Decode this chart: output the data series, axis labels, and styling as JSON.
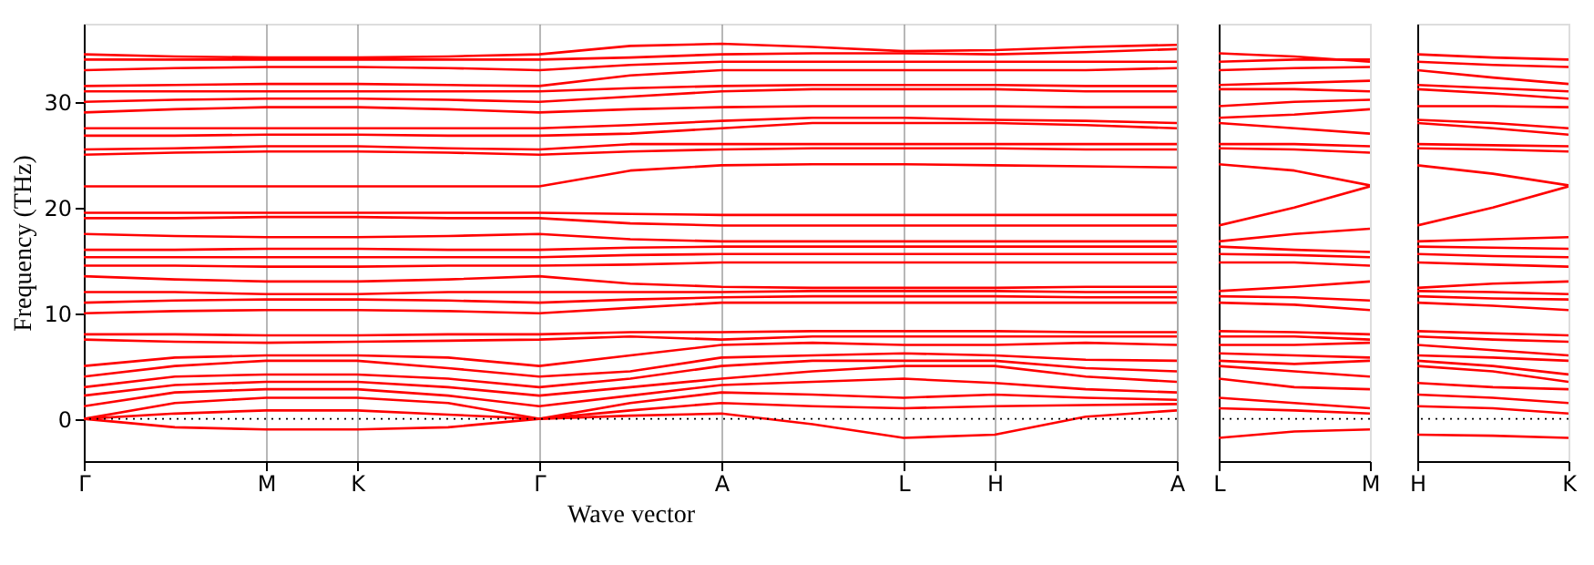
{
  "chart_data": [
    {
      "type": "line",
      "ylabel": "Frequency (THz)",
      "xlabel": "Wave vector",
      "categories": [
        "Γ",
        null,
        "M",
        "K",
        null,
        "Γ",
        null,
        "A",
        null,
        "L",
        "H",
        null,
        "A"
      ],
      "ylim": [
        -4,
        37.4
      ],
      "yticks": [
        0,
        10,
        20,
        30
      ],
      "grid": "x",
      "ref_lines": [
        {
          "axis": "y",
          "value": 0,
          "line_style": "dotted",
          "color": "#000000"
        }
      ],
      "line_style": "solid",
      "series": [
        {
          "color": "#ff0000",
          "values": [
            0,
            -0.8,
            -1.0,
            -1.0,
            -0.8,
            0,
            0.3,
            0.5,
            -0.5,
            -1.8,
            -1.5,
            0.2,
            0.8
          ]
        },
        {
          "color": "#ff0000",
          "values": [
            0,
            0.5,
            0.8,
            0.8,
            0.4,
            0,
            0.8,
            1.5,
            1.2,
            1.0,
            1.2,
            1.3,
            1.4
          ]
        },
        {
          "color": "#ff0000",
          "values": [
            0,
            1.5,
            2.0,
            2.0,
            1.5,
            0,
            1.5,
            2.5,
            2.3,
            2.0,
            2.3,
            2.0,
            1.8
          ]
        },
        {
          "color": "#ff0000",
          "values": [
            1.2,
            2.5,
            2.8,
            2.8,
            2.2,
            1.2,
            2.2,
            3.2,
            3.5,
            3.8,
            3.4,
            2.8,
            2.5
          ]
        },
        {
          "color": "#ff0000",
          "values": [
            2.2,
            3.2,
            3.5,
            3.5,
            3.0,
            2.2,
            3.0,
            3.8,
            4.5,
            5.0,
            5.0,
            4.0,
            3.5
          ]
        },
        {
          "color": "#ff0000",
          "values": [
            3.0,
            4.0,
            4.2,
            4.2,
            3.8,
            3.0,
            3.8,
            5.0,
            5.5,
            5.5,
            5.5,
            4.8,
            4.5
          ]
        },
        {
          "color": "#ff0000",
          "values": [
            4.0,
            5.0,
            5.5,
            5.5,
            4.8,
            4.0,
            4.5,
            5.8,
            6.0,
            6.2,
            6.0,
            5.6,
            5.5
          ]
        },
        {
          "color": "#ff0000",
          "values": [
            5.0,
            5.8,
            6.0,
            6.0,
            5.8,
            5.0,
            6.0,
            7.0,
            7.2,
            7.0,
            7.0,
            7.2,
            7.0
          ]
        },
        {
          "color": "#ff0000",
          "values": [
            7.5,
            7.3,
            7.2,
            7.3,
            7.4,
            7.5,
            7.8,
            7.5,
            7.8,
            7.8,
            7.8,
            7.8,
            7.8
          ]
        },
        {
          "color": "#ff0000",
          "values": [
            8.0,
            8.0,
            7.9,
            7.9,
            8.0,
            8.0,
            8.2,
            8.2,
            8.3,
            8.3,
            8.3,
            8.2,
            8.2
          ]
        },
        {
          "color": "#ff0000",
          "values": [
            10.0,
            10.2,
            10.3,
            10.3,
            10.2,
            10.0,
            10.5,
            11.0,
            11.0,
            11.0,
            11.0,
            11.0,
            11.0
          ]
        },
        {
          "color": "#ff0000",
          "values": [
            11.0,
            11.2,
            11.3,
            11.3,
            11.2,
            11.0,
            11.3,
            11.5,
            11.6,
            11.6,
            11.6,
            11.5,
            11.5
          ]
        },
        {
          "color": "#ff0000",
          "values": [
            12.0,
            12.0,
            11.8,
            11.8,
            12.0,
            12.0,
            12.0,
            12.0,
            12.1,
            12.1,
            12.1,
            12.0,
            12.0
          ]
        },
        {
          "color": "#ff0000",
          "values": [
            13.5,
            13.2,
            13.0,
            13.0,
            13.2,
            13.5,
            12.8,
            12.5,
            12.4,
            12.4,
            12.4,
            12.5,
            12.5
          ]
        },
        {
          "color": "#ff0000",
          "values": [
            14.5,
            14.5,
            14.4,
            14.4,
            14.5,
            14.5,
            14.6,
            14.8,
            14.8,
            14.8,
            14.8,
            14.8,
            14.8
          ]
        },
        {
          "color": "#ff0000",
          "values": [
            15.3,
            15.3,
            15.3,
            15.3,
            15.3,
            15.3,
            15.5,
            15.6,
            15.6,
            15.6,
            15.6,
            15.6,
            15.6
          ]
        },
        {
          "color": "#ff0000",
          "values": [
            16.0,
            16.0,
            16.1,
            16.1,
            16.0,
            16.0,
            16.2,
            16.3,
            16.3,
            16.3,
            16.3,
            16.3,
            16.3
          ]
        },
        {
          "color": "#ff0000",
          "values": [
            17.5,
            17.3,
            17.2,
            17.2,
            17.3,
            17.5,
            17.0,
            16.8,
            16.8,
            16.8,
            16.8,
            16.8,
            16.8
          ]
        },
        {
          "color": "#ff0000",
          "values": [
            19.0,
            19.0,
            19.1,
            19.1,
            19.0,
            19.0,
            18.5,
            18.3,
            18.3,
            18.3,
            18.3,
            18.3,
            18.3
          ]
        },
        {
          "color": "#ff0000",
          "values": [
            19.5,
            19.5,
            19.5,
            19.5,
            19.5,
            19.5,
            19.4,
            19.3,
            19.3,
            19.3,
            19.3,
            19.3,
            19.3
          ]
        },
        {
          "color": "#ff0000",
          "values": [
            22.0,
            22.0,
            22.0,
            22.0,
            22.0,
            22.0,
            23.5,
            24.0,
            24.1,
            24.1,
            24.0,
            23.9,
            23.8
          ]
        },
        {
          "color": "#ff0000",
          "values": [
            25.0,
            25.2,
            25.3,
            25.3,
            25.2,
            25.0,
            25.3,
            25.5,
            25.6,
            25.6,
            25.6,
            25.5,
            25.5
          ]
        },
        {
          "color": "#ff0000",
          "values": [
            25.5,
            25.6,
            25.8,
            25.8,
            25.6,
            25.5,
            26.0,
            26.0,
            26.0,
            26.0,
            26.0,
            26.0,
            26.0
          ]
        },
        {
          "color": "#ff0000",
          "values": [
            26.8,
            26.8,
            26.9,
            26.9,
            26.8,
            26.8,
            27.0,
            27.5,
            28.0,
            28.0,
            28.0,
            27.8,
            27.5
          ]
        },
        {
          "color": "#ff0000",
          "values": [
            27.5,
            27.5,
            27.5,
            27.5,
            27.5,
            27.5,
            27.8,
            28.2,
            28.5,
            28.5,
            28.3,
            28.2,
            28.0
          ]
        },
        {
          "color": "#ff0000",
          "values": [
            29.0,
            29.3,
            29.5,
            29.5,
            29.3,
            29.0,
            29.3,
            29.5,
            29.6,
            29.6,
            29.6,
            29.5,
            29.5
          ]
        },
        {
          "color": "#ff0000",
          "values": [
            30.0,
            30.2,
            30.3,
            30.3,
            30.2,
            30.0,
            30.5,
            31.0,
            31.2,
            31.2,
            31.2,
            31.0,
            31.0
          ]
        },
        {
          "color": "#ff0000",
          "values": [
            31.0,
            31.0,
            31.0,
            31.0,
            31.0,
            31.0,
            31.3,
            31.5,
            31.6,
            31.6,
            31.6,
            31.5,
            31.5
          ]
        },
        {
          "color": "#ff0000",
          "values": [
            31.5,
            31.6,
            31.7,
            31.7,
            31.6,
            31.5,
            32.5,
            33.0,
            33.0,
            33.0,
            33.0,
            33.0,
            33.2
          ]
        },
        {
          "color": "#ff0000",
          "values": [
            33.0,
            33.2,
            33.3,
            33.3,
            33.2,
            33.0,
            33.5,
            33.8,
            33.8,
            33.8,
            33.8,
            33.8,
            33.8
          ]
        },
        {
          "color": "#ff0000",
          "values": [
            34.0,
            34.0,
            34.0,
            34.0,
            34.0,
            34.0,
            34.2,
            34.5,
            34.6,
            34.6,
            34.5,
            34.7,
            35.0
          ]
        },
        {
          "color": "#ff0000",
          "values": [
            34.5,
            34.3,
            34.2,
            34.2,
            34.3,
            34.5,
            35.3,
            35.5,
            35.2,
            34.8,
            34.9,
            35.2,
            35.4
          ]
        }
      ]
    },
    {
      "type": "line",
      "categories": [
        "L",
        null,
        "M"
      ],
      "ylim": [
        -4,
        37.4
      ],
      "tick_labels": "x",
      "ref_lines": [
        {
          "axis": "y",
          "value": 0,
          "line_style": "dotted",
          "color": "#000000"
        }
      ],
      "line_style": "solid",
      "series": [
        {
          "color": "#ff0000",
          "values": [
            -1.8,
            -1.2,
            -1.0
          ]
        },
        {
          "color": "#ff0000",
          "values": [
            1.0,
            0.8,
            0.5
          ]
        },
        {
          "color": "#ff0000",
          "values": [
            2.0,
            1.5,
            1.0
          ]
        },
        {
          "color": "#ff0000",
          "values": [
            3.8,
            3.0,
            2.8
          ]
        },
        {
          "color": "#ff0000",
          "values": [
            5.0,
            4.5,
            4.0
          ]
        },
        {
          "color": "#ff0000",
          "values": [
            5.5,
            5.2,
            5.5
          ]
        },
        {
          "color": "#ff0000",
          "values": [
            6.2,
            6.0,
            5.8
          ]
        },
        {
          "color": "#ff0000",
          "values": [
            7.0,
            7.0,
            7.2
          ]
        },
        {
          "color": "#ff0000",
          "values": [
            7.8,
            7.8,
            7.5
          ]
        },
        {
          "color": "#ff0000",
          "values": [
            8.3,
            8.2,
            8.0
          ]
        },
        {
          "color": "#ff0000",
          "values": [
            11.0,
            10.8,
            10.3
          ]
        },
        {
          "color": "#ff0000",
          "values": [
            11.6,
            11.5,
            11.2
          ]
        },
        {
          "color": "#ff0000",
          "values": [
            12.1,
            12.5,
            13.0
          ]
        },
        {
          "color": "#ff0000",
          "values": [
            14.8,
            14.8,
            14.5
          ]
        },
        {
          "color": "#ff0000",
          "values": [
            15.6,
            15.5,
            15.3
          ]
        },
        {
          "color": "#ff0000",
          "values": [
            16.3,
            16.0,
            15.8
          ]
        },
        {
          "color": "#ff0000",
          "values": [
            16.8,
            17.5,
            18.0
          ]
        },
        {
          "color": "#ff0000",
          "values": [
            18.3,
            20.0,
            22.0
          ]
        },
        {
          "color": "#ff0000",
          "values": [
            24.1,
            23.5,
            22.1
          ]
        },
        {
          "color": "#ff0000",
          "values": [
            25.6,
            25.5,
            25.2
          ]
        },
        {
          "color": "#ff0000",
          "values": [
            26.0,
            26.0,
            25.8
          ]
        },
        {
          "color": "#ff0000",
          "values": [
            28.0,
            27.5,
            27.0
          ]
        },
        {
          "color": "#ff0000",
          "values": [
            28.5,
            28.8,
            29.3
          ]
        },
        {
          "color": "#ff0000",
          "values": [
            29.6,
            30.0,
            30.2
          ]
        },
        {
          "color": "#ff0000",
          "values": [
            31.2,
            31.2,
            31.0
          ]
        },
        {
          "color": "#ff0000",
          "values": [
            31.6,
            31.8,
            32.0
          ]
        },
        {
          "color": "#ff0000",
          "values": [
            33.0,
            33.2,
            33.3
          ]
        },
        {
          "color": "#ff0000",
          "values": [
            33.8,
            34.0,
            34.0
          ]
        },
        {
          "color": "#ff0000",
          "values": [
            34.6,
            34.3,
            33.8
          ]
        }
      ]
    },
    {
      "type": "line",
      "categories": [
        "H",
        null,
        "K"
      ],
      "ylim": [
        -4,
        37.4
      ],
      "tick_labels": "x",
      "ref_lines": [
        {
          "axis": "y",
          "value": 0,
          "line_style": "dotted",
          "color": "#000000"
        }
      ],
      "line_style": "solid",
      "series": [
        {
          "color": "#ff0000",
          "values": [
            -1.5,
            -1.6,
            -1.8
          ]
        },
        {
          "color": "#ff0000",
          "values": [
            1.2,
            1.0,
            0.5
          ]
        },
        {
          "color": "#ff0000",
          "values": [
            2.3,
            2.0,
            1.5
          ]
        },
        {
          "color": "#ff0000",
          "values": [
            3.4,
            3.0,
            2.8
          ]
        },
        {
          "color": "#ff0000",
          "values": [
            5.0,
            4.5,
            3.5
          ]
        },
        {
          "color": "#ff0000",
          "values": [
            5.5,
            5.0,
            4.2
          ]
        },
        {
          "color": "#ff0000",
          "values": [
            6.0,
            5.8,
            5.5
          ]
        },
        {
          "color": "#ff0000",
          "values": [
            7.0,
            6.5,
            6.0
          ]
        },
        {
          "color": "#ff0000",
          "values": [
            7.8,
            7.5,
            7.3
          ]
        },
        {
          "color": "#ff0000",
          "values": [
            8.3,
            8.1,
            7.9
          ]
        },
        {
          "color": "#ff0000",
          "values": [
            11.0,
            10.7,
            10.3
          ]
        },
        {
          "color": "#ff0000",
          "values": [
            11.6,
            11.4,
            11.3
          ]
        },
        {
          "color": "#ff0000",
          "values": [
            12.1,
            12.0,
            11.8
          ]
        },
        {
          "color": "#ff0000",
          "values": [
            12.4,
            12.8,
            13.0
          ]
        },
        {
          "color": "#ff0000",
          "values": [
            14.8,
            14.6,
            14.4
          ]
        },
        {
          "color": "#ff0000",
          "values": [
            15.6,
            15.4,
            15.3
          ]
        },
        {
          "color": "#ff0000",
          "values": [
            16.3,
            16.2,
            16.1
          ]
        },
        {
          "color": "#ff0000",
          "values": [
            16.8,
            17.0,
            17.2
          ]
        },
        {
          "color": "#ff0000",
          "values": [
            18.3,
            20.0,
            22.0
          ]
        },
        {
          "color": "#ff0000",
          "values": [
            24.0,
            23.2,
            22.1
          ]
        },
        {
          "color": "#ff0000",
          "values": [
            25.6,
            25.5,
            25.3
          ]
        },
        {
          "color": "#ff0000",
          "values": [
            26.0,
            25.9,
            25.8
          ]
        },
        {
          "color": "#ff0000",
          "values": [
            28.0,
            27.5,
            26.9
          ]
        },
        {
          "color": "#ff0000",
          "values": [
            28.3,
            28.0,
            27.5
          ]
        },
        {
          "color": "#ff0000",
          "values": [
            29.6,
            29.6,
            29.5
          ]
        },
        {
          "color": "#ff0000",
          "values": [
            31.2,
            30.8,
            30.3
          ]
        },
        {
          "color": "#ff0000",
          "values": [
            31.6,
            31.3,
            31.0
          ]
        },
        {
          "color": "#ff0000",
          "values": [
            33.0,
            32.3,
            31.7
          ]
        },
        {
          "color": "#ff0000",
          "values": [
            33.8,
            33.5,
            33.3
          ]
        },
        {
          "color": "#ff0000",
          "values": [
            34.5,
            34.2,
            34.0
          ]
        }
      ]
    }
  ]
}
